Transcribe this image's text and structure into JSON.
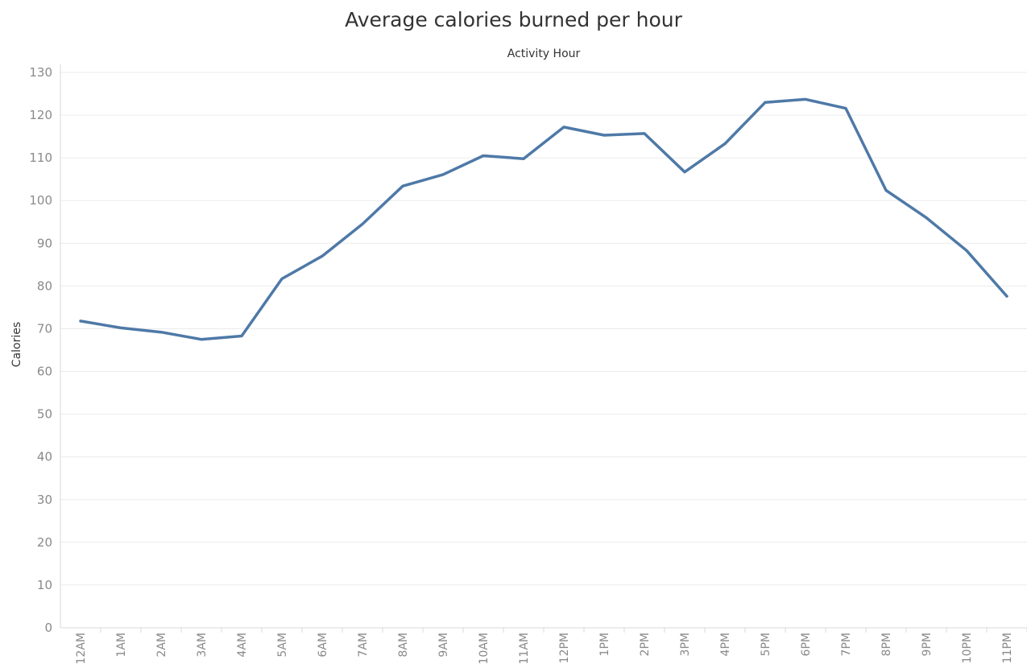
{
  "chart_data": {
    "type": "line",
    "title": "Average calories burned per hour",
    "xlabel": "Activity Hour",
    "ylabel": "Calories",
    "categories": [
      "12AM",
      "1AM",
      "2AM",
      "3AM",
      "4AM",
      "5AM",
      "6AM",
      "7AM",
      "8AM",
      "9AM",
      "10AM",
      "11AM",
      "12PM",
      "1PM",
      "2PM",
      "3PM",
      "4PM",
      "5PM",
      "6PM",
      "7PM",
      "8PM",
      "9PM",
      "10PM",
      "11PM"
    ],
    "series": [
      {
        "values": [
          71.8,
          70.2,
          69.2,
          67.5,
          68.3,
          81.7,
          87.0,
          94.5,
          103.4,
          106.1,
          110.5,
          109.8,
          117.2,
          115.3,
          115.7,
          106.7,
          113.3,
          123.0,
          123.7,
          121.6,
          102.4,
          96.0,
          88.3,
          77.6
        ]
      }
    ],
    "ylim": [
      0,
      130
    ],
    "yticks": [
      0,
      10,
      20,
      30,
      40,
      50,
      60,
      70,
      80,
      90,
      100,
      110,
      120,
      130
    ],
    "grid": true,
    "line_color": "#4e79a7",
    "grid_color": "#ebebeb",
    "axis_color": "#d9d9d9"
  }
}
